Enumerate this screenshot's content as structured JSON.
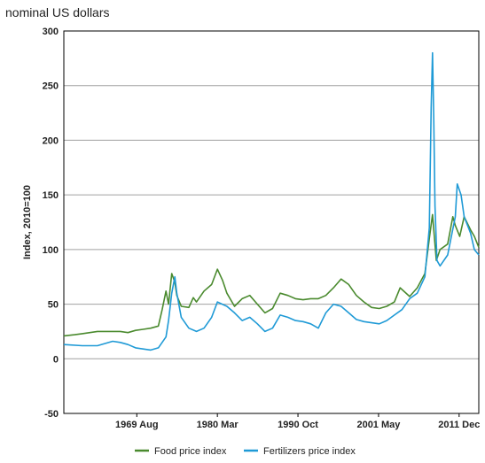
{
  "chart_data": {
    "type": "line",
    "subtitle": "nominal US dollars",
    "ylabel": "Index, 2010=100",
    "ylim": [
      -50,
      300
    ],
    "yticks": [
      -50,
      0,
      50,
      100,
      150,
      200,
      250,
      300
    ],
    "xlim": [
      "1960-01",
      "2014-07"
    ],
    "xtick_labels": [
      {
        "label": "1969 Aug",
        "x": "1969-08"
      },
      {
        "label": "1980 Mar",
        "x": "1980-03"
      },
      {
        "label": "1990 Oct",
        "x": "1990-10"
      },
      {
        "label": "2001 May",
        "x": "2001-05"
      },
      {
        "label": "2011 Dec",
        "x": "2011-12"
      }
    ],
    "grid": "horizontal",
    "legend_position": "bottom",
    "series": [
      {
        "name": "Food price index",
        "color": "#4a8a2e",
        "x": [
          "1960-01",
          "1961-06",
          "1962-06",
          "1963-06",
          "1964-06",
          "1965-06",
          "1966-06",
          "1967-06",
          "1968-06",
          "1969-06",
          "1970-06",
          "1971-06",
          "1972-06",
          "1972-12",
          "1973-06",
          "1973-10",
          "1974-03",
          "1974-08",
          "1974-11",
          "1975-06",
          "1976-06",
          "1977-01",
          "1977-06",
          "1978-06",
          "1979-06",
          "1980-03",
          "1980-11",
          "1981-06",
          "1982-06",
          "1983-06",
          "1984-06",
          "1985-06",
          "1986-06",
          "1987-06",
          "1988-06",
          "1989-06",
          "1990-06",
          "1991-06",
          "1992-06",
          "1993-06",
          "1994-06",
          "1995-06",
          "1996-06",
          "1997-06",
          "1998-06",
          "1999-06",
          "2000-06",
          "2001-06",
          "2002-06",
          "2003-06",
          "2004-03",
          "2005-06",
          "2006-06",
          "2007-06",
          "2008-01",
          "2008-06",
          "2008-12",
          "2009-06",
          "2010-06",
          "2011-02",
          "2011-06",
          "2012-01",
          "2012-08",
          "2013-06",
          "2013-12",
          "2014-07"
        ],
        "values": [
          21,
          22,
          23,
          24,
          25,
          25,
          25,
          25,
          24,
          26,
          27,
          28,
          30,
          45,
          62,
          50,
          78,
          70,
          58,
          48,
          47,
          56,
          52,
          62,
          68,
          82,
          72,
          60,
          48,
          55,
          58,
          50,
          42,
          46,
          60,
          58,
          55,
          54,
          55,
          55,
          58,
          65,
          73,
          68,
          58,
          52,
          47,
          46,
          48,
          52,
          65,
          57,
          65,
          78,
          110,
          132,
          90,
          100,
          105,
          130,
          122,
          112,
          130,
          118,
          112,
          102
        ]
      },
      {
        "name": "Fertilizers price index",
        "color": "#1f9ad6",
        "x": [
          "1960-01",
          "1962-06",
          "1964-06",
          "1965-06",
          "1966-06",
          "1967-06",
          "1968-06",
          "1969-06",
          "1970-06",
          "1971-06",
          "1972-06",
          "1973-06",
          "1973-10",
          "1974-03",
          "1974-08",
          "1974-11",
          "1975-06",
          "1976-06",
          "1977-06",
          "1978-06",
          "1979-06",
          "1980-03",
          "1981-06",
          "1982-06",
          "1983-06",
          "1984-06",
          "1985-06",
          "1986-06",
          "1987-06",
          "1988-06",
          "1989-06",
          "1990-06",
          "1991-06",
          "1992-06",
          "1993-06",
          "1994-06",
          "1995-06",
          "1996-06",
          "1997-06",
          "1998-06",
          "1999-06",
          "2000-06",
          "2001-06",
          "2002-06",
          "2003-06",
          "2004-06",
          "2005-06",
          "2006-06",
          "2007-06",
          "2008-01",
          "2008-04",
          "2008-06",
          "2008-08",
          "2008-10",
          "2009-01",
          "2009-06",
          "2010-06",
          "2011-06",
          "2011-09",
          "2012-03",
          "2012-08",
          "2013-06",
          "2013-12",
          "2014-07"
        ],
        "values": [
          13,
          12,
          12,
          14,
          16,
          15,
          13,
          10,
          9,
          8,
          10,
          20,
          35,
          60,
          75,
          60,
          38,
          28,
          25,
          28,
          38,
          52,
          48,
          42,
          35,
          38,
          32,
          25,
          28,
          40,
          38,
          35,
          34,
          32,
          28,
          42,
          50,
          48,
          42,
          36,
          34,
          33,
          32,
          35,
          40,
          45,
          55,
          60,
          75,
          120,
          230,
          280,
          220,
          140,
          90,
          85,
          95,
          130,
          160,
          150,
          130,
          115,
          100,
          95
        ]
      }
    ]
  }
}
